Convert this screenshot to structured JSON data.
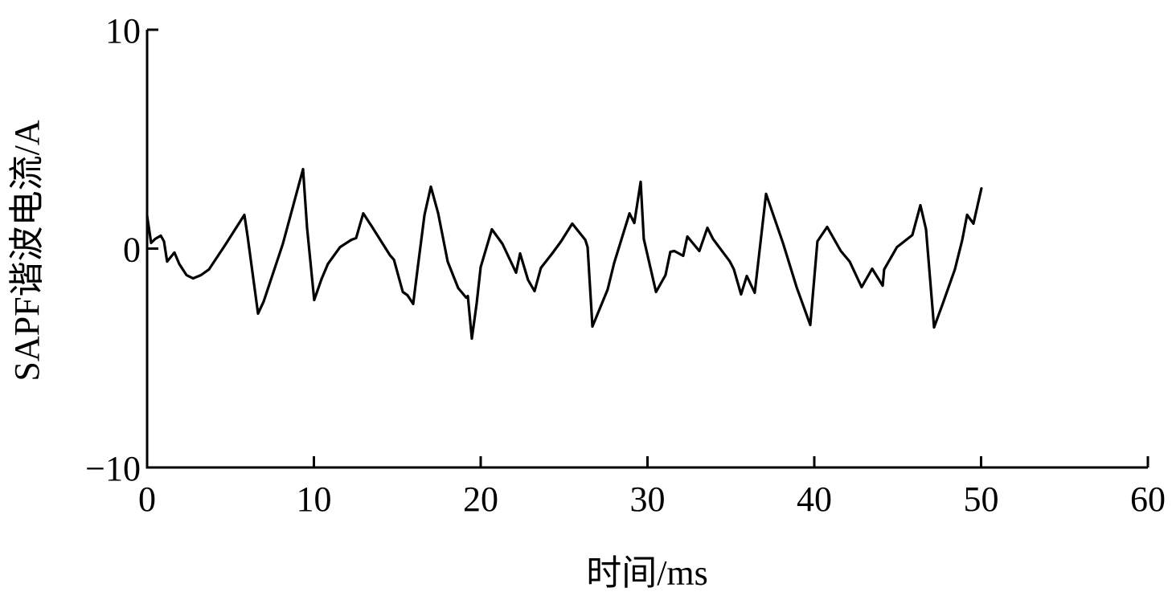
{
  "chart_data": {
    "type": "line",
    "title": "",
    "xlabel": "时间/ms",
    "ylabel": "SAPF谐波电流/A",
    "xlim": [
      0,
      60
    ],
    "ylim": [
      -10,
      10
    ],
    "xticks": [
      0,
      10,
      20,
      30,
      40,
      50,
      60
    ],
    "yticks": [
      -10,
      0,
      10
    ],
    "xtick_labels": [
      "0",
      "10",
      "20",
      "30",
      "40",
      "50",
      "60"
    ],
    "ytick_labels": [
      "−10",
      "0",
      "10"
    ],
    "grid": false,
    "line_color": "#000000",
    "series": [
      {
        "x": [
          0.0,
          0.24,
          0.48,
          0.82,
          1.01,
          1.2,
          1.64,
          1.93,
          2.36,
          2.75,
          3.23,
          3.71,
          4.67,
          5.83,
          6.02,
          6.65,
          6.99,
          8.14,
          9.35,
          9.59,
          10.02,
          10.46,
          10.84,
          11.57,
          12.24,
          12.53,
          12.96,
          13.49,
          14.55,
          14.8,
          15.33,
          15.61,
          15.95,
          16.24,
          16.63,
          17.01,
          17.45,
          18.02,
          18.65,
          19.13,
          19.23,
          19.47,
          19.76,
          20.0,
          20.67,
          21.3,
          22.12,
          22.36,
          22.84,
          23.23,
          23.61,
          24.29,
          24.82,
          25.49,
          26.27,
          26.41,
          26.7,
          27.61,
          28.0,
          28.92,
          29.21,
          29.59,
          29.78,
          30.51,
          31.08,
          31.37,
          31.61,
          32.14,
          32.39,
          33.11,
          33.59,
          33.93,
          34.94,
          35.18,
          35.61,
          35.95,
          36.43,
          37.11,
          38.12,
          38.94,
          39.76,
          40.19,
          40.77,
          41.59,
          42.12,
          42.84,
          43.47,
          44.1,
          44.19,
          44.96,
          45.88,
          46.36,
          46.7,
          47.18,
          47.71,
          48.43,
          48.87,
          49.16,
          49.54,
          50.02
        ],
        "y": [
          1.5,
          0.26,
          0.44,
          0.59,
          0.33,
          -0.59,
          -0.18,
          -0.7,
          -1.21,
          -1.36,
          -1.21,
          -0.95,
          0.15,
          1.54,
          0.59,
          -2.97,
          -2.42,
          0.22,
          3.63,
          0.95,
          -2.35,
          -1.39,
          -0.7,
          0.07,
          0.4,
          0.48,
          1.61,
          0.99,
          -0.29,
          -0.51,
          -1.98,
          -2.13,
          -2.53,
          -0.77,
          1.54,
          2.83,
          1.61,
          -0.59,
          -1.8,
          -2.24,
          -2.17,
          -4.11,
          -2.5,
          -0.84,
          0.88,
          0.22,
          -1.1,
          -0.22,
          -1.43,
          -1.94,
          -0.88,
          -0.22,
          0.33,
          1.14,
          0.4,
          0.07,
          -3.56,
          -1.87,
          -0.66,
          1.61,
          1.17,
          3.05,
          0.44,
          -1.98,
          -1.21,
          -0.15,
          -0.11,
          -0.33,
          0.55,
          -0.11,
          0.95,
          0.44,
          -0.59,
          -0.95,
          -2.09,
          -1.25,
          -2.02,
          2.5,
          0.26,
          -1.76,
          -3.49,
          0.33,
          0.99,
          -0.11,
          -0.59,
          -1.76,
          -0.92,
          -1.69,
          -0.95,
          0.07,
          0.62,
          1.98,
          0.88,
          -3.6,
          -2.5,
          -0.95,
          0.4,
          1.54,
          1.14,
          2.75
        ]
      }
    ]
  }
}
